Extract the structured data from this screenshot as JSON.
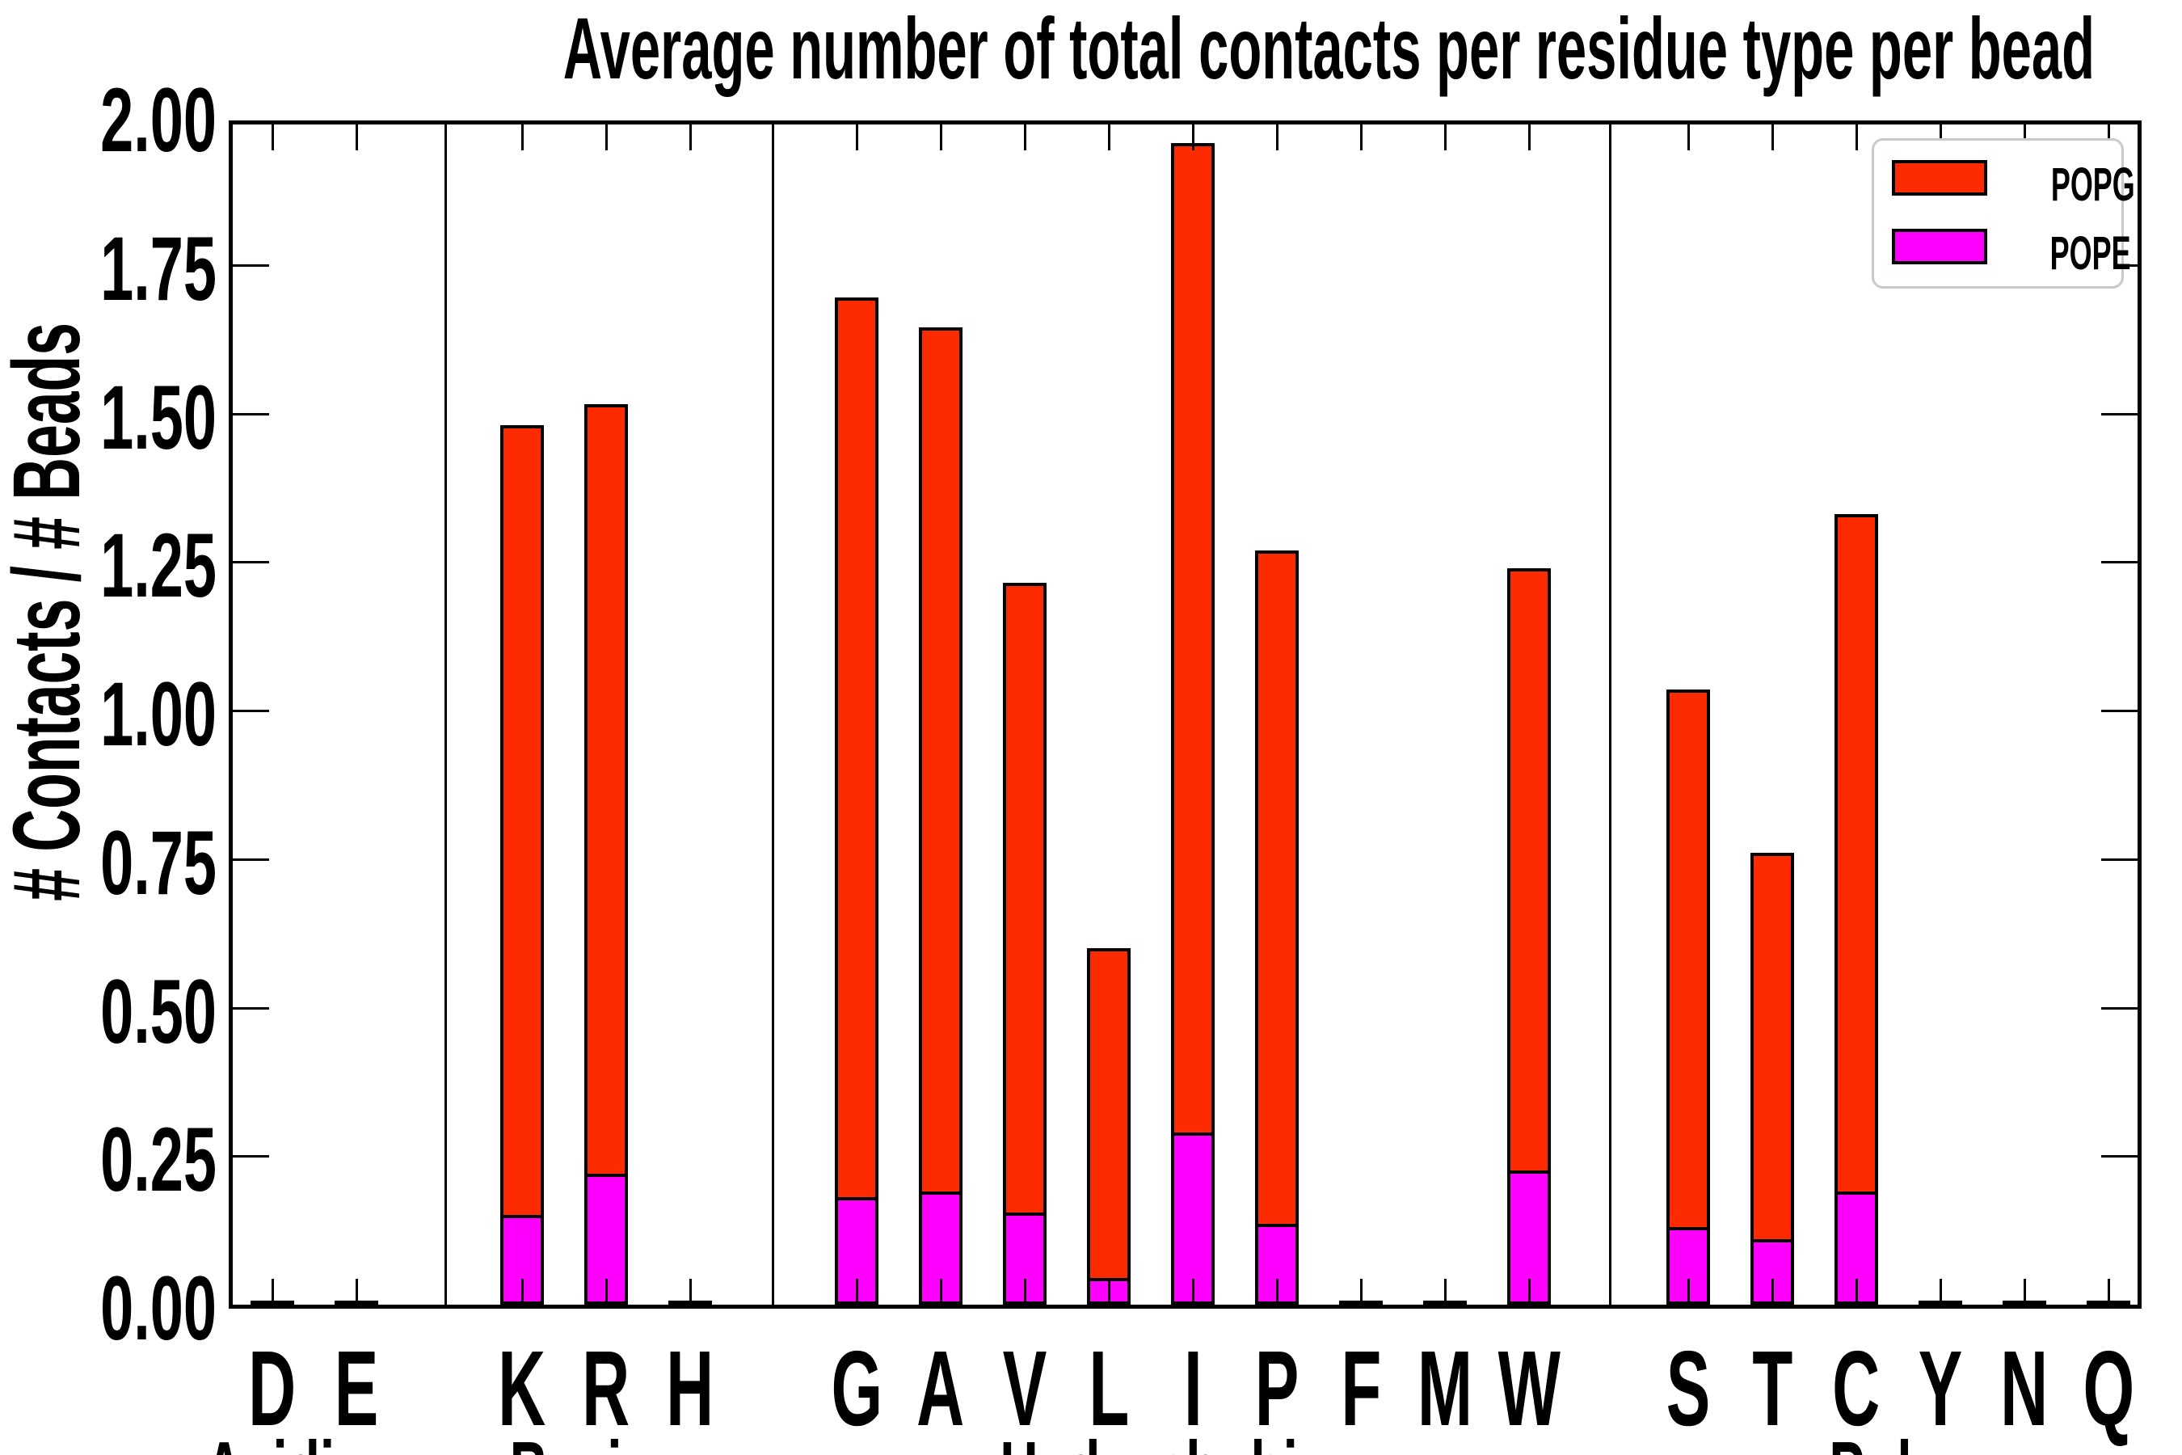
{
  "title": "Average number of total contacts per residue type per bead",
  "y_axis_label": "# Contacts / # Beads",
  "y_tick_labels": [
    "2.00",
    "1.75",
    "1.50",
    "1.25",
    "1.00",
    "0.75",
    "0.50",
    "0.25",
    "0.00"
  ],
  "legend": {
    "items": [
      {
        "label": "POPG",
        "color": "#ff2b00"
      },
      {
        "label": "POPE",
        "color": "#ff00ff"
      }
    ]
  },
  "chart_data": {
    "type": "bar",
    "stacked": true,
    "title": "Average number of total contacts per residue type per bead",
    "xlabel": "",
    "ylabel": "# Contacts / # Beads",
    "ylim": [
      0,
      2
    ],
    "y_tick_step": 0.25,
    "grid": false,
    "legend_position": "upper right",
    "categories": [
      "D",
      "E",
      "K",
      "R",
      "H",
      "G",
      "A",
      "V",
      "L",
      "I",
      "P",
      "F",
      "M",
      "W",
      "S",
      "T",
      "C",
      "Y",
      "N",
      "Q"
    ],
    "groups": [
      {
        "label": "Acidic",
        "categories": [
          "D",
          "E"
        ]
      },
      {
        "label": "Basic",
        "categories": [
          "K",
          "R",
          "H"
        ]
      },
      {
        "label": "Hydrophobic",
        "categories": [
          "G",
          "A",
          "V",
          "L",
          "I",
          "P",
          "F",
          "M",
          "W"
        ]
      },
      {
        "label": "Polar",
        "categories": [
          "S",
          "T",
          "C",
          "Y",
          "N",
          "Q"
        ]
      }
    ],
    "series": [
      {
        "name": "POPG",
        "color": "#ff2b00",
        "stack_segment_values": [
          0,
          0,
          1.335,
          1.3,
          0,
          1.52,
          1.46,
          1.065,
          0.56,
          1.67,
          1.14,
          0,
          0,
          1.02,
          0.91,
          0.655,
          1.145,
          0,
          0,
          0
        ]
      },
      {
        "name": "POPE",
        "color": "#ff00ff",
        "stack_segment_values": [
          0,
          0,
          0.145,
          0.215,
          0,
          0.175,
          0.185,
          0.15,
          0.04,
          0.285,
          0.13,
          0,
          0,
          0.22,
          0.125,
          0.105,
          0.185,
          0,
          0,
          0
        ]
      }
    ],
    "stacked_totals": [
      0,
      0,
      1.48,
      1.515,
      0,
      1.695,
      1.645,
      1.215,
      0.6,
      1.955,
      1.27,
      0,
      0,
      1.24,
      1.035,
      0.76,
      1.33,
      0,
      0,
      0
    ]
  }
}
